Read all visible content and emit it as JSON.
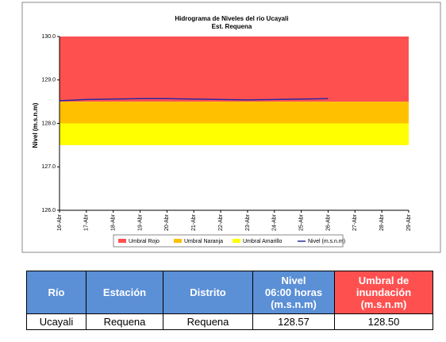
{
  "chart_data": {
    "type": "line",
    "title": "Hidrograma de Niveles del rio Ucayali",
    "subtitle": "Est. Requena",
    "y_label": "Nivel (m.s.n.m)",
    "categories": [
      "16-Abr",
      "17-Abr",
      "18-Abr",
      "19-Abr",
      "20-Abr",
      "21-Abr",
      "22-Abr",
      "23-Abr",
      "24-Abr",
      "25-Abr",
      "26-Abr",
      "27-Abr",
      "28-Abr",
      "29-Abr"
    ],
    "ylim": [
      126,
      130
    ],
    "yticks": [
      {
        "value": 126,
        "label": "126.0"
      },
      {
        "value": 127,
        "label": "127.0"
      },
      {
        "value": 128,
        "label": "128.0"
      },
      {
        "value": 129,
        "label": "129.0"
      },
      {
        "value": 130,
        "label": "130.0"
      }
    ],
    "bands": [
      {
        "name": "Umbral Rojo",
        "color": "#ff5050",
        "range": [
          128.5,
          130
        ]
      },
      {
        "name": "Umbral Naranja",
        "color": "#ffc000",
        "range": [
          128.0,
          128.5
        ]
      },
      {
        "name": "Umbral Amarillo",
        "color": "#ffff00",
        "range": [
          127.5,
          128.0
        ]
      }
    ],
    "series": [
      {
        "name": "Nivel (m.s.n.m)",
        "color": "#2a2aa0",
        "values": [
          128.52,
          128.55,
          128.56,
          128.57,
          128.57,
          128.56,
          128.55,
          128.54,
          128.55,
          128.56,
          128.57,
          null,
          null,
          null
        ]
      }
    ],
    "legend": "bottom"
  },
  "table": {
    "header": [
      "Río",
      "Estación",
      "Distrito",
      "Nivel\n06:00 horas\n(m.s.n.m)",
      "Umbral de\ninundación\n(m.s.n.m)"
    ],
    "rows": [
      [
        "Ucayali",
        "Requena",
        "Requena",
        "128.57",
        "128.50"
      ]
    ]
  }
}
